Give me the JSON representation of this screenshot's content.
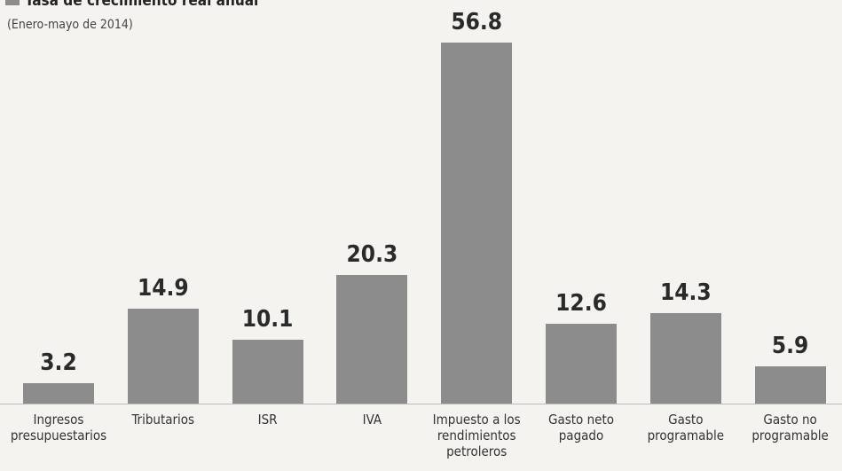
{
  "chart_data": {
    "type": "bar",
    "title": "Tasa de crecimiento real anual",
    "subtitle": "(Enero-mayo de 2014)",
    "categories": [
      "Ingresos presupuestarios",
      "Tributarios",
      "ISR",
      "IVA",
      "Impuesto a los rendimientos petroleros",
      "Gasto neto pagado",
      "Gasto programable",
      "Gasto no programable"
    ],
    "values": [
      3.2,
      14.9,
      10.1,
      20.3,
      56.8,
      12.6,
      14.3,
      5.9
    ],
    "color": "#8c8c8c"
  }
}
